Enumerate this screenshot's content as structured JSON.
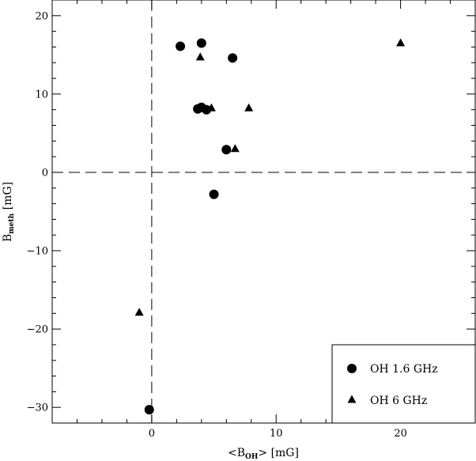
{
  "chart_data": {
    "type": "scatter",
    "title": "",
    "xlabel": {
      "prefix": "<B",
      "sub": "OH",
      "suffix": "> [mG]"
    },
    "ylabel": {
      "prefix": "B",
      "sub": "meth",
      "suffix": " [mG]"
    },
    "xlim": [
      -8,
      26
    ],
    "ylim": [
      -32,
      22
    ],
    "xticks_major": [
      0,
      10,
      20
    ],
    "yticks_major": [
      -30,
      -20,
      -10,
      0,
      10,
      20
    ],
    "x_tick_labels": [
      "0",
      "10",
      "20"
    ],
    "y_tick_labels": [
      "−30",
      "−20",
      "−10",
      "0",
      "10",
      "20"
    ],
    "x_minor_step": 2,
    "y_minor_step": 2,
    "grid": false,
    "reference_lines": {
      "x0": 0,
      "y0": 0,
      "style": "dashed"
    },
    "legend_position": "bottom-right",
    "series": [
      {
        "name": "OH 1.6 GHz",
        "marker": "circle",
        "color": "#000000",
        "points": [
          [
            2.3,
            16.1
          ],
          [
            4.0,
            16.5
          ],
          [
            6.5,
            14.6
          ],
          [
            3.7,
            8.1
          ],
          [
            4.0,
            8.3
          ],
          [
            4.4,
            8.0
          ],
          [
            6.0,
            2.9
          ],
          [
            5.0,
            -2.8
          ],
          [
            -0.2,
            -30.3
          ]
        ]
      },
      {
        "name": "OH 6 GHz",
        "marker": "triangle",
        "color": "#000000",
        "points": [
          [
            3.9,
            14.7
          ],
          [
            20.0,
            16.5
          ],
          [
            4.8,
            8.2
          ],
          [
            7.8,
            8.2
          ],
          [
            6.7,
            3.0
          ],
          [
            -1.0,
            -17.9
          ]
        ]
      }
    ]
  }
}
